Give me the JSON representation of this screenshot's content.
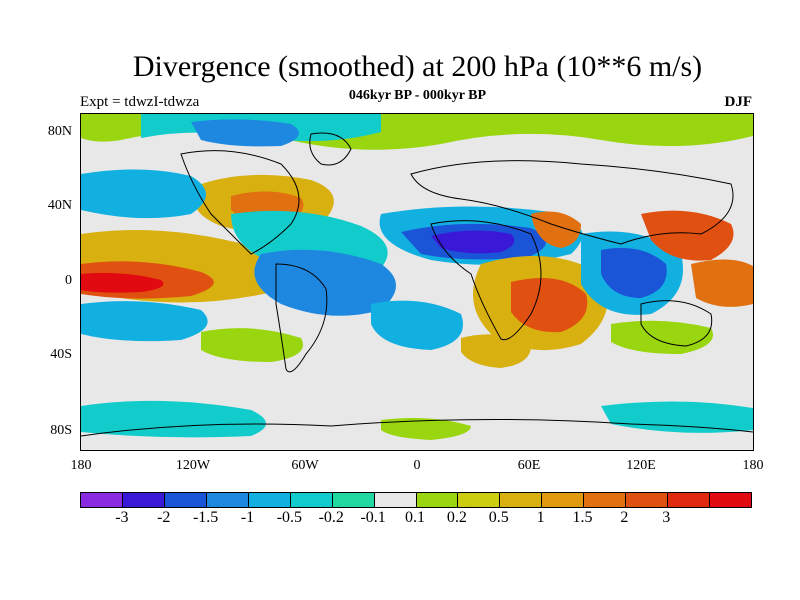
{
  "title": "Divergence (smoothed) at 200 hPa (10**6 m/s)",
  "subtitle": "046kyr BP - 000kyr BP",
  "left_label": "Expt = tdwzI-tdwza",
  "right_label": "DJF",
  "y_ticks": [
    "80N",
    "40N",
    "0",
    "40S",
    "80S"
  ],
  "x_ticks": [
    "180",
    "120W",
    "60W",
    "0",
    "60E",
    "120E",
    "180"
  ],
  "colorbar": {
    "colors": [
      "#8a2be2",
      "#3a18d8",
      "#1a55d8",
      "#1e88e0",
      "#12b0e0",
      "#12cccc",
      "#20d8a0",
      "#e8e8e8",
      "#9ad610",
      "#cccc10",
      "#d8b010",
      "#e09a10",
      "#e07010",
      "#e05010",
      "#e02a10",
      "#e00a10"
    ],
    "labels": [
      "-3",
      "-2",
      "-1.5",
      "-1",
      "-0.5",
      "-0.2",
      "-0.1",
      "0.1",
      "0.2",
      "0.5",
      "1",
      "1.5",
      "2",
      "3"
    ]
  }
}
